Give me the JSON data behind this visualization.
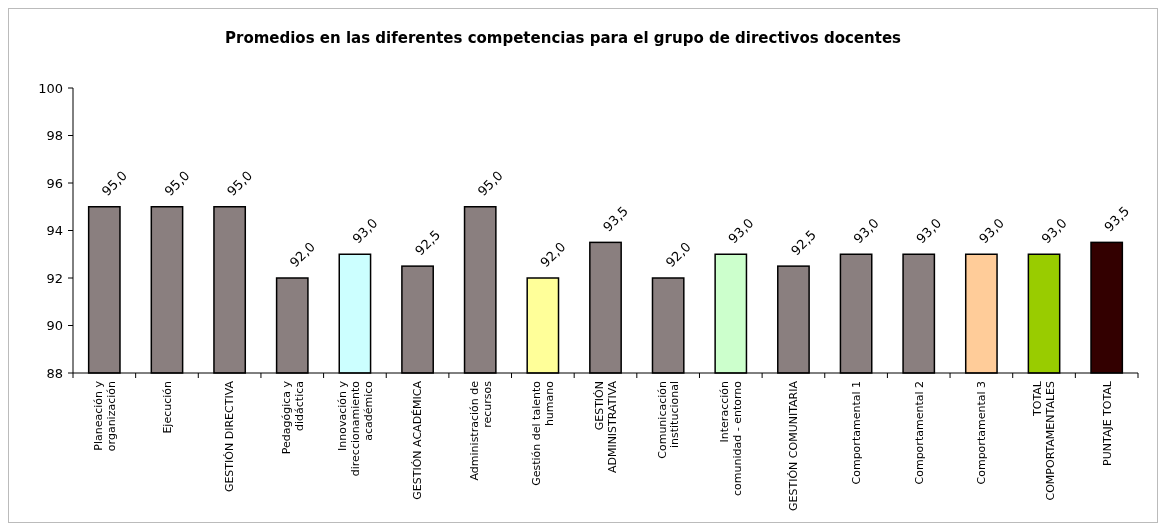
{
  "chart_data": {
    "type": "bar",
    "title": "Promedios en las diferentes competencias para el grupo de directivos docentes",
    "categories": [
      "Planeación y organización",
      "Ejecución",
      "GESTIÓN DIRECTIVA",
      "Pedagógica y didáctica",
      "Innovación y direccionamiento académico",
      "GESTIÓN ACADÉMICA",
      "Administración de recursos",
      "Gestión del talento humano",
      "GESTIÓN ADMINISTRATIVA",
      "Comunicación institucional",
      "Interacción comunidad - entorno",
      "GESTIÓN COMUNITARIA",
      "Comportamental 1",
      "Comportamental 2",
      "Comportamental 3",
      "TOTAL COMPORTAMENTALES",
      "PUNTAJE TOTAL"
    ],
    "values": [
      95.0,
      95.0,
      95.0,
      92.0,
      93.0,
      92.5,
      95.0,
      92.0,
      93.5,
      92.0,
      93.0,
      92.5,
      93.0,
      93.0,
      93.0,
      93.0,
      93.5
    ],
    "value_labels": [
      "95,0",
      "95,0",
      "95,0",
      "92,0",
      "93,0",
      "92,5",
      "95,0",
      "92,0",
      "93,5",
      "92,0",
      "93,0",
      "92,5",
      "93,0",
      "93,0",
      "93,0",
      "93,0",
      "93,5"
    ],
    "colors": [
      "#8a7f7f",
      "#8a7f7f",
      "#8a7f7f",
      "#8a7f7f",
      "#ccffff",
      "#8a7f7f",
      "#8a7f7f",
      "#ffff99",
      "#8a7f7f",
      "#8a7f7f",
      "#ccffcc",
      "#8a7f7f",
      "#8a7f7f",
      "#8a7f7f",
      "#ffcc99",
      "#99cc00",
      "#330000"
    ],
    "ylim": [
      88,
      100
    ],
    "yticks": [
      88,
      90,
      92,
      94,
      96,
      98,
      100
    ],
    "grid": false
  }
}
